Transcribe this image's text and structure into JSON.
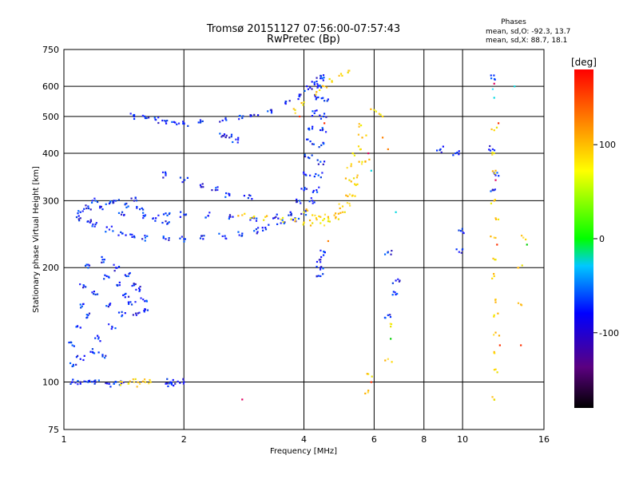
{
  "chart_data": {
    "type": "scatter",
    "title": "Tromsø 20151127 07:56:00-07:57:43",
    "subtitle": "RwPretec (Bp)",
    "stats": {
      "heading": "Phases",
      "line1": "mean, sd,O:  -92.3, 13.7",
      "line2": "mean, sd,X:  88.7, 18.1"
    },
    "xlabel": "Frequency [MHz]",
    "ylabel": "Stationary phase Virtual Height [km]",
    "xscale": "log",
    "yscale": "log",
    "xlim": [
      1,
      16
    ],
    "ylim": [
      75,
      750
    ],
    "xticks": [
      1,
      2,
      4,
      6,
      8,
      10,
      16
    ],
    "yticks": [
      75,
      100,
      200,
      300,
      400,
      500,
      600,
      750
    ],
    "grid": true,
    "colorbar": {
      "label": "[deg]",
      "range": [
        -180,
        180
      ],
      "ticks": [
        100,
        0,
        -100
      ]
    },
    "series": [
      {
        "color_class": "O-mode (blue, ~ -92°)",
        "points": [
          [
            1.05,
            100
          ],
          [
            1.1,
            99
          ],
          [
            1.15,
            100
          ],
          [
            1.2,
            100
          ],
          [
            1.3,
            99
          ],
          [
            1.35,
            100
          ],
          [
            1.4,
            100
          ],
          [
            1.8,
            99
          ],
          [
            1.85,
            100
          ],
          [
            1.9,
            99
          ],
          [
            2.0,
            100
          ],
          [
            1.05,
            125
          ],
          [
            1.08,
            140
          ],
          [
            1.1,
            160
          ],
          [
            1.12,
            180
          ],
          [
            1.15,
            200
          ],
          [
            1.15,
            150
          ],
          [
            1.2,
            170
          ],
          [
            1.22,
            130
          ],
          [
            1.25,
            210
          ],
          [
            1.28,
            190
          ],
          [
            1.3,
            160
          ],
          [
            1.32,
            140
          ],
          [
            1.35,
            200
          ],
          [
            1.38,
            180
          ],
          [
            1.4,
            150
          ],
          [
            1.42,
            170
          ],
          [
            1.45,
            190
          ],
          [
            1.48,
            160
          ],
          [
            1.5,
            180
          ],
          [
            1.52,
            150
          ],
          [
            1.55,
            175
          ],
          [
            1.58,
            165
          ],
          [
            1.6,
            155
          ],
          [
            1.05,
            110
          ],
          [
            1.1,
            115
          ],
          [
            1.18,
            120
          ],
          [
            1.25,
            118
          ],
          [
            1.1,
            280
          ],
          [
            1.15,
            290
          ],
          [
            1.2,
            300
          ],
          [
            1.25,
            285
          ],
          [
            1.3,
            295
          ],
          [
            1.35,
            300
          ],
          [
            1.4,
            280
          ],
          [
            1.45,
            290
          ],
          [
            1.5,
            300
          ],
          [
            1.55,
            285
          ],
          [
            1.6,
            275
          ],
          [
            1.7,
            270
          ],
          [
            1.8,
            265
          ],
          [
            1.1,
            270
          ],
          [
            1.15,
            265
          ],
          [
            1.2,
            260
          ],
          [
            1.3,
            252
          ],
          [
            1.4,
            246
          ],
          [
            1.5,
            242
          ],
          [
            1.6,
            240
          ],
          [
            1.8,
            238
          ],
          [
            2.0,
            238
          ],
          [
            2.2,
            239
          ],
          [
            2.5,
            242
          ],
          [
            2.8,
            246
          ],
          [
            3.0,
            250
          ],
          [
            3.2,
            255
          ],
          [
            3.5,
            262
          ],
          [
            3.8,
            270
          ],
          [
            4.0,
            280
          ],
          [
            4.2,
            300
          ],
          [
            4.3,
            320
          ],
          [
            4.35,
            350
          ],
          [
            4.4,
            380
          ],
          [
            4.42,
            420
          ],
          [
            4.45,
            460
          ],
          [
            4.48,
            500
          ],
          [
            4.5,
            550
          ],
          [
            1.8,
            278
          ],
          [
            2.0,
            276
          ],
          [
            2.3,
            274
          ],
          [
            2.6,
            272
          ],
          [
            3.0,
            270
          ],
          [
            3.4,
            272
          ],
          [
            3.7,
            280
          ],
          [
            3.9,
            300
          ],
          [
            4.0,
            320
          ],
          [
            4.05,
            350
          ],
          [
            4.1,
            390
          ],
          [
            4.15,
            430
          ],
          [
            4.2,
            470
          ],
          [
            4.25,
            510
          ],
          [
            4.3,
            560
          ],
          [
            4.35,
            600
          ],
          [
            4.4,
            630
          ],
          [
            1.5,
            500
          ],
          [
            1.6,
            495
          ],
          [
            1.7,
            490
          ],
          [
            1.8,
            485
          ],
          [
            1.9,
            482
          ],
          [
            2.0,
            480
          ],
          [
            2.2,
            482
          ],
          [
            2.5,
            488
          ],
          [
            2.8,
            495
          ],
          [
            3.0,
            505
          ],
          [
            3.3,
            520
          ],
          [
            3.6,
            540
          ],
          [
            3.9,
            565
          ],
          [
            4.1,
            590
          ],
          [
            4.25,
            615
          ],
          [
            4.4,
            640
          ],
          [
            2.5,
            445
          ],
          [
            2.6,
            440
          ],
          [
            2.7,
            435
          ],
          [
            4.4,
            190
          ],
          [
            4.4,
            200
          ],
          [
            4.4,
            210
          ],
          [
            4.5,
            220
          ],
          [
            6.5,
            220
          ],
          [
            6.5,
            150
          ],
          [
            6.8,
            170
          ],
          [
            6.8,
            185
          ],
          [
            8.8,
            410
          ],
          [
            9.6,
            400
          ],
          [
            9.8,
            220
          ],
          [
            9.9,
            250
          ],
          [
            11.8,
            630
          ],
          [
            11.9,
            410
          ],
          [
            12.0,
            320
          ],
          [
            12.1,
            350
          ],
          [
            1.8,
            350
          ],
          [
            2.0,
            340
          ],
          [
            2.2,
            330
          ],
          [
            2.4,
            320
          ],
          [
            2.6,
            310
          ],
          [
            2.9,
            305
          ]
        ]
      },
      {
        "color_class": "X-mode (yellow/orange, ~ +89°)",
        "points": [
          [
            1.4,
            100
          ],
          [
            1.45,
            99
          ],
          [
            1.5,
            100
          ],
          [
            1.55,
            99
          ],
          [
            1.6,
            100
          ],
          [
            1.65,
            100
          ],
          [
            2.8,
            275
          ],
          [
            3.0,
            273
          ],
          [
            3.2,
            272
          ],
          [
            3.5,
            268
          ],
          [
            3.8,
            265
          ],
          [
            4.0,
            263
          ],
          [
            4.2,
            262
          ],
          [
            4.4,
            262
          ],
          [
            4.6,
            265
          ],
          [
            4.8,
            270
          ],
          [
            5.0,
            280
          ],
          [
            5.2,
            295
          ],
          [
            5.3,
            310
          ],
          [
            5.4,
            330
          ],
          [
            5.45,
            350
          ],
          [
            5.5,
            380
          ],
          [
            5.55,
            410
          ],
          [
            5.6,
            440
          ],
          [
            4.0,
            280
          ],
          [
            4.2,
            275
          ],
          [
            4.4,
            272
          ],
          [
            4.6,
            272
          ],
          [
            4.8,
            278
          ],
          [
            5.0,
            290
          ],
          [
            5.1,
            310
          ],
          [
            5.2,
            340
          ],
          [
            5.25,
            370
          ],
          [
            5.3,
            400
          ],
          [
            4.3,
            580
          ],
          [
            4.5,
            600
          ],
          [
            4.7,
            620
          ],
          [
            4.9,
            640
          ],
          [
            5.2,
            660
          ],
          [
            3.8,
            520
          ],
          [
            4.0,
            545
          ],
          [
            5.5,
            470
          ],
          [
            5.7,
            380
          ],
          [
            12.0,
            460
          ],
          [
            12.0,
            400
          ],
          [
            12.1,
            360
          ],
          [
            12.0,
            300
          ],
          [
            12.1,
            270
          ],
          [
            12.0,
            240
          ],
          [
            12.1,
            210
          ],
          [
            12.0,
            190
          ],
          [
            12.1,
            165
          ],
          [
            12.0,
            150
          ],
          [
            12.1,
            135
          ],
          [
            12.0,
            120
          ],
          [
            12.1,
            108
          ],
          [
            12.0,
            90
          ],
          [
            6.0,
            520
          ],
          [
            6.3,
            500
          ],
          [
            5.8,
            105
          ],
          [
            6.5,
            115
          ],
          [
            6.6,
            140
          ],
          [
            5.8,
            95
          ],
          [
            14.0,
            160
          ],
          [
            14.2,
            240
          ],
          [
            13.8,
            200
          ]
        ]
      },
      {
        "color_class": "other phases (green/red/cyan scattered)",
        "points": [
          [
            3.9,
            500
          ],
          [
            4.5,
            480
          ],
          [
            6.5,
            410
          ],
          [
            6.3,
            440
          ],
          [
            5.9,
            360
          ],
          [
            5.8,
            400
          ],
          [
            12.0,
            560
          ],
          [
            11.9,
            590
          ],
          [
            12.0,
            610
          ],
          [
            12.3,
            480
          ],
          [
            12.1,
            340
          ],
          [
            12.2,
            230
          ],
          [
            13.5,
            600
          ],
          [
            14.5,
            230
          ],
          [
            14.0,
            125
          ],
          [
            12.4,
            125
          ],
          [
            6.6,
            130
          ],
          [
            5.9,
            100
          ],
          [
            6.8,
            280
          ],
          [
            2.8,
            90
          ],
          [
            4.6,
            235
          ]
        ]
      }
    ]
  }
}
